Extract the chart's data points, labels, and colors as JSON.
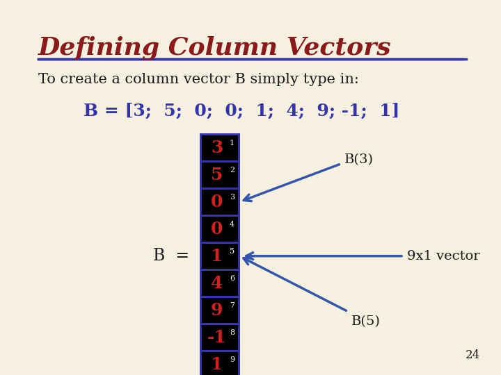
{
  "bg_color": "#f5f0e0",
  "title": "Defining Column Vectors",
  "title_color": "#8b1a1a",
  "title_underline_color": "#3333aa",
  "subtitle": "To create a column vector B simply type in:",
  "subtitle_color": "#1a1a1a",
  "equation": "B = [3;  5;  0;  0;  1;  4;  9; -1;  1]",
  "equation_color": "#3333aa",
  "vector_values": [
    "3",
    "5",
    "0",
    "0",
    "1",
    "4",
    "9",
    "-1",
    "1"
  ],
  "vector_indices": [
    "1",
    "2",
    "3",
    "4",
    "5",
    "6",
    "7",
    "8",
    "9"
  ],
  "vector_cell_bg": "#000000",
  "vector_cell_border": "#3333aa",
  "vector_number_color": "#cc2222",
  "vector_index_color": "#ffffff",
  "b_label": "B  =",
  "b_label_color": "#1a1a1a",
  "annotation_b3": "B(3)",
  "annotation_b5": "B(5)",
  "annotation_9x1": "9x1 vector",
  "annotation_color": "#1a1a1a",
  "page_number": "24",
  "arrow_color": "#3355aa"
}
